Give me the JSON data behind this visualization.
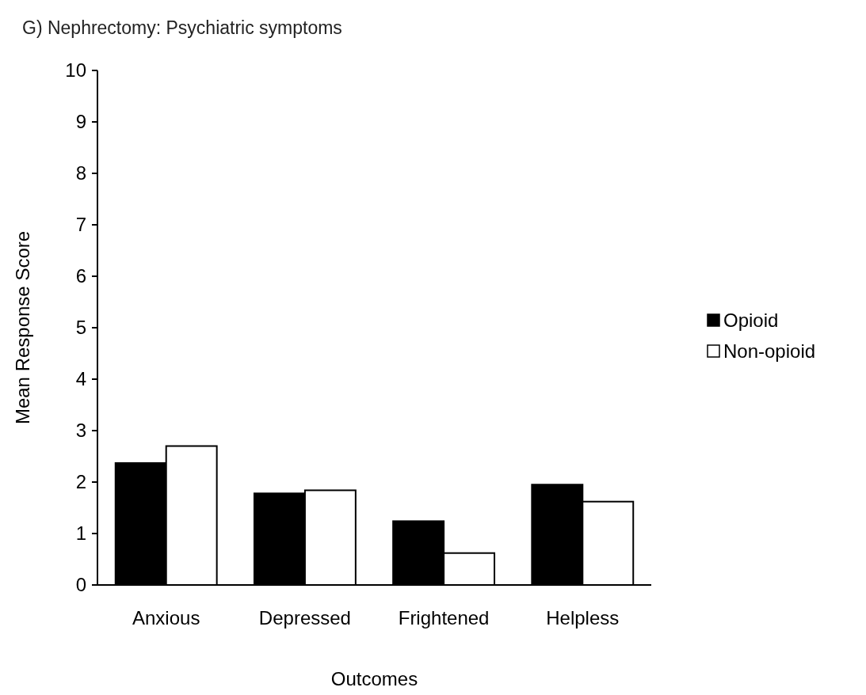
{
  "chart_data": {
    "type": "bar",
    "title": "G) Nephrectomy: Psychiatric symptoms",
    "xlabel": "Outcomes",
    "ylabel": "Mean Response Score",
    "categories": [
      "Anxious",
      "Depressed",
      "Frightened",
      "Helpless"
    ],
    "series": [
      {
        "name": "Opioid",
        "color": "#000000",
        "values": [
          2.37,
          1.78,
          1.24,
          1.95
        ]
      },
      {
        "name": "Non-opioid",
        "color": "#ffffff",
        "values": [
          2.7,
          1.84,
          0.62,
          1.62
        ]
      }
    ],
    "ylim": [
      0,
      10
    ],
    "yticks": [
      0,
      1,
      2,
      3,
      4,
      5,
      6,
      7,
      8,
      9,
      10
    ],
    "grid": false,
    "legend": "right"
  }
}
